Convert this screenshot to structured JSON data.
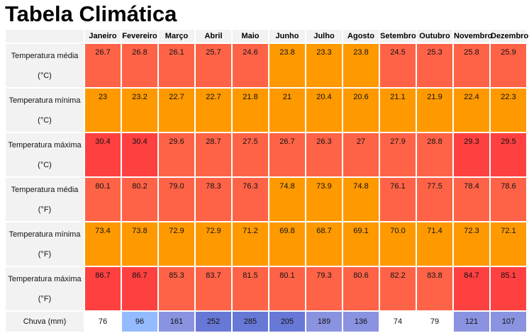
{
  "title": "Tabela Climática",
  "months": [
    "Janeiro",
    "Fevereiro",
    "Março",
    "Abril",
    "Maio",
    "Junho",
    "Julho",
    "Agosto",
    "Setembro",
    "Outubro",
    "Novembro",
    "Dezembro"
  ],
  "rows": [
    {
      "label": "Temperatura média",
      "unit": "(°C)",
      "values": [
        "26.7",
        "26.8",
        "26.1",
        "25.7",
        "24.6",
        "23.8",
        "23.3",
        "23.8",
        "24.5",
        "25.3",
        "25.8",
        "25.9"
      ],
      "colors": [
        "warm",
        "warm",
        "warm",
        "warm",
        "warm",
        "orange",
        "orange",
        "orange",
        "warm",
        "warm",
        "warm",
        "warm"
      ]
    },
    {
      "label": "Temperatura mínima",
      "unit": "(°C)",
      "values": [
        "23",
        "23.2",
        "22.7",
        "22.7",
        "21.8",
        "21",
        "20.4",
        "20.6",
        "21.1",
        "21.9",
        "22.4",
        "22.3"
      ],
      "colors": [
        "orange",
        "orange",
        "orange",
        "orange",
        "orange",
        "orange",
        "orange",
        "orange",
        "orange",
        "orange",
        "orange",
        "orange"
      ]
    },
    {
      "label": "Temperatura máxima",
      "unit": "(°C)",
      "values": [
        "30.4",
        "30.4",
        "29.6",
        "28.7",
        "27.5",
        "26.7",
        "26.3",
        "27",
        "27.9",
        "28.8",
        "29.3",
        "29.5"
      ],
      "colors": [
        "hot",
        "hot",
        "warm",
        "warm",
        "warm",
        "warm",
        "warm",
        "warm",
        "warm",
        "warm",
        "hot",
        "hot"
      ]
    },
    {
      "label": "Temperatura média",
      "unit": "(°F)",
      "values": [
        "80.1",
        "80.2",
        "79.0",
        "78.3",
        "76.3",
        "74.8",
        "73.9",
        "74.8",
        "76.1",
        "77.5",
        "78.4",
        "78.6"
      ],
      "colors": [
        "warm",
        "warm",
        "warm",
        "warm",
        "warm",
        "orange",
        "orange",
        "orange",
        "warm",
        "warm",
        "warm",
        "warm"
      ]
    },
    {
      "label": "Temperatura mínima",
      "unit": "(°F)",
      "values": [
        "73.4",
        "73.8",
        "72.9",
        "72.9",
        "71.2",
        "69.8",
        "68.7",
        "69.1",
        "70.0",
        "71.4",
        "72.3",
        "72.1"
      ],
      "colors": [
        "orange",
        "orange",
        "orange",
        "orange",
        "orange",
        "orange",
        "orange",
        "orange",
        "orange",
        "orange",
        "orange",
        "orange"
      ]
    },
    {
      "label": "Temperatura máxima",
      "unit": "(°F)",
      "values": [
        "86.7",
        "86.7",
        "85.3",
        "83.7",
        "81.5",
        "80.1",
        "79.3",
        "80.6",
        "82.2",
        "83.8",
        "84.7",
        "85.1"
      ],
      "colors": [
        "hot",
        "hot",
        "warm",
        "warm",
        "warm",
        "warm",
        "warm",
        "warm",
        "warm",
        "warm",
        "hot",
        "hot"
      ]
    }
  ],
  "rain": {
    "label": "Chuva (mm)",
    "values": [
      "76",
      "96",
      "161",
      "252",
      "285",
      "205",
      "189",
      "136",
      "74",
      "79",
      "121",
      "107"
    ],
    "colors": [
      "white",
      "light",
      "mid",
      "deep",
      "deep",
      "deep",
      "mid",
      "mid",
      "white",
      "white",
      "mid",
      "mid"
    ]
  },
  "palette": {
    "orange": "#ff9900",
    "warm": "#ff6347",
    "hot": "#ff4040",
    "white": "#ffffff",
    "light": "#94bbff",
    "mid": "#8a93e0",
    "deep": "#6878d6"
  }
}
